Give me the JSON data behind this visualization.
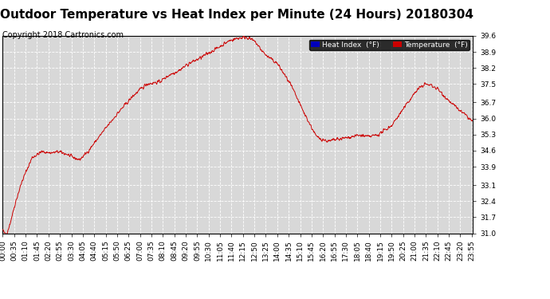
{
  "title": "Outdoor Temperature vs Heat Index per Minute (24 Hours) 20180304",
  "copyright": "Copyright 2018 Cartronics.com",
  "legend_labels": [
    "Heat Index  (°F)",
    "Temperature  (°F)"
  ],
  "legend_colors": [
    "#0000bb",
    "#cc0000"
  ],
  "line_color": "#cc0000",
  "background_color": "#ffffff",
  "plot_bg_color": "#d8d8d8",
  "grid_color": "#ffffff",
  "ylim": [
    31.0,
    39.6
  ],
  "yticks": [
    31.0,
    31.7,
    32.4,
    33.1,
    33.9,
    34.6,
    35.3,
    36.0,
    36.7,
    37.5,
    38.2,
    38.9,
    39.6
  ],
  "title_fontsize": 11,
  "copyright_fontsize": 7,
  "tick_fontsize": 6.5,
  "xtick_interval_minutes": 35,
  "control_minutes": [
    0,
    5,
    10,
    20,
    40,
    60,
    90,
    120,
    150,
    170,
    195,
    215,
    235,
    260,
    300,
    350,
    400,
    440,
    480,
    510,
    540,
    570,
    600,
    630,
    660,
    695,
    720,
    745,
    760,
    775,
    790,
    810,
    840,
    880,
    920,
    960,
    985,
    1000,
    1010,
    1030,
    1050,
    1065,
    1080,
    1100,
    1120,
    1150,
    1190,
    1230,
    1265,
    1290,
    1310,
    1330,
    1360,
    1390,
    1420,
    1439
  ],
  "control_temps": [
    31.15,
    31.0,
    30.95,
    31.3,
    32.4,
    33.3,
    34.3,
    34.55,
    34.5,
    34.55,
    34.45,
    34.3,
    34.2,
    34.55,
    35.3,
    36.2,
    37.0,
    37.5,
    37.6,
    37.9,
    38.1,
    38.4,
    38.6,
    38.85,
    39.1,
    39.4,
    39.5,
    39.55,
    39.45,
    39.3,
    39.0,
    38.7,
    38.4,
    37.5,
    36.3,
    35.2,
    35.05,
    35.0,
    35.05,
    35.1,
    35.15,
    35.2,
    35.25,
    35.25,
    35.2,
    35.3,
    35.7,
    36.5,
    37.2,
    37.5,
    37.45,
    37.3,
    36.85,
    36.45,
    36.1,
    35.85
  ]
}
